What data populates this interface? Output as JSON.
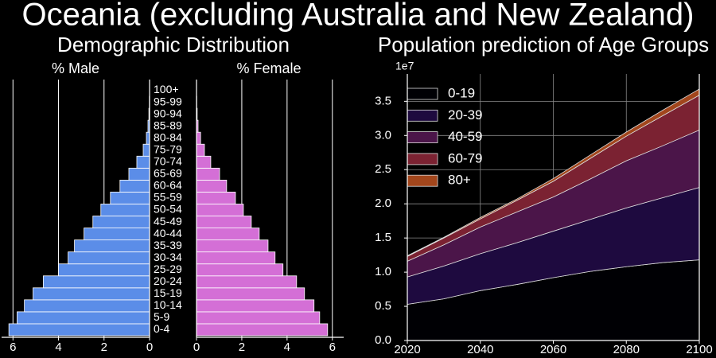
{
  "title": "Oceania (excluding Australia and New Zealand)",
  "chart_data": [
    {
      "type": "pyramid",
      "title": "Demographic Distribution",
      "categories": [
        "0-4",
        "5-9",
        "10-14",
        "15-19",
        "20-24",
        "25-29",
        "30-34",
        "35-39",
        "40-44",
        "45-49",
        "50-54",
        "55-59",
        "60-64",
        "65-69",
        "70-74",
        "75-79",
        "80-84",
        "85-89",
        "90-94",
        "95-99",
        "100+"
      ],
      "series": [
        {
          "name": "% Male",
          "color": "#5b8de8",
          "values": [
            6.18,
            5.82,
            5.5,
            5.12,
            4.67,
            4.0,
            3.58,
            3.3,
            2.88,
            2.49,
            2.14,
            1.72,
            1.3,
            0.91,
            0.56,
            0.28,
            0.14,
            0.07,
            0.03,
            0.01,
            0
          ]
        },
        {
          "name": "% Female",
          "color": "#d46fd6",
          "values": [
            5.79,
            5.44,
            5.19,
            4.77,
            4.42,
            3.82,
            3.47,
            3.16,
            2.77,
            2.42,
            2.07,
            1.72,
            1.33,
            1.02,
            0.63,
            0.35,
            0.18,
            0.07,
            0.03,
            0.01,
            0
          ]
        }
      ],
      "xlim": [
        0,
        6.5
      ],
      "xticks": [
        0,
        2,
        4,
        6
      ],
      "grid": true
    },
    {
      "type": "area",
      "title": "Population prediction of Age Groups",
      "stacked": true,
      "x": [
        2020,
        2030,
        2040,
        2050,
        2060,
        2070,
        2080,
        2090,
        2100
      ],
      "series": [
        {
          "name": "0-19",
          "color": "#000004",
          "values": [
            0.53,
            0.61,
            0.73,
            0.82,
            0.92,
            1.01,
            1.08,
            1.14,
            1.18
          ]
        },
        {
          "name": "20-39",
          "color": "#1e0a3f",
          "values": [
            0.4,
            0.48,
            0.54,
            0.61,
            0.68,
            0.76,
            0.86,
            0.95,
            1.06
          ]
        },
        {
          "name": "40-59",
          "color": "#4b1549",
          "values": [
            0.23,
            0.31,
            0.39,
            0.45,
            0.5,
            0.59,
            0.69,
            0.76,
            0.84
          ]
        },
        {
          "name": "60-79",
          "color": "#7b2232",
          "values": [
            0.07,
            0.1,
            0.12,
            0.17,
            0.23,
            0.3,
            0.36,
            0.44,
            0.51
          ]
        },
        {
          "name": "80+",
          "color": "#a2461c",
          "values": [
            0.01,
            0.01,
            0.02,
            0.02,
            0.04,
            0.05,
            0.06,
            0.08,
            0.09
          ]
        }
      ],
      "xlim": [
        2020,
        2100
      ],
      "xticks": [
        2020,
        2040,
        2060,
        2080,
        2100
      ],
      "ylim": [
        0,
        3.9
      ],
      "yticks": [
        {
          "value": 0,
          "label": "0.0"
        },
        {
          "value": 0.5,
          "label": "0.5"
        },
        {
          "value": 1,
          "label": "1.0"
        },
        {
          "value": 1.5,
          "label": "1.5"
        },
        {
          "value": 2,
          "label": "2.0"
        },
        {
          "value": 2.5,
          "label": "2.5"
        },
        {
          "value": 3,
          "label": "3.0"
        },
        {
          "value": 3.5,
          "label": "3.5"
        }
      ],
      "y_offset_label": "1e7",
      "grid": true,
      "legend": "upper left"
    }
  ]
}
